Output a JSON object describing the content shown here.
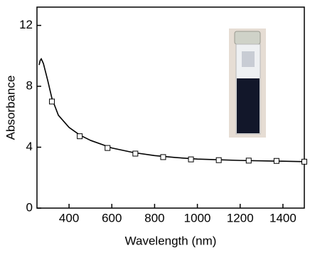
{
  "chart_data": {
    "type": "line",
    "xlabel": "Wavelength (nm)",
    "ylabel": "Absorbance",
    "xlim": [
      250,
      1500
    ],
    "ylim": [
      0,
      13.2
    ],
    "xticks": [
      400,
      600,
      800,
      1000,
      1200,
      1400
    ],
    "yticks": [
      0,
      4,
      8,
      12
    ],
    "series": [
      {
        "style": "line",
        "color": "#000000",
        "x": [
          260,
          265,
          270,
          280,
          300,
          320,
          350,
          400,
          450,
          500,
          600,
          700,
          800,
          900,
          1000,
          1200,
          1400,
          1500
        ],
        "values": [
          9.4,
          9.7,
          9.8,
          9.5,
          8.4,
          7.2,
          6.1,
          5.3,
          4.8,
          4.45,
          3.95,
          3.65,
          3.45,
          3.32,
          3.22,
          3.13,
          3.08,
          3.05
        ]
      },
      {
        "style": "markers",
        "marker": "square",
        "color": "#000000",
        "x": [
          320,
          450,
          580,
          710,
          840,
          970,
          1100,
          1240,
          1370,
          1500
        ],
        "values": [
          7.0,
          4.72,
          3.95,
          3.58,
          3.35,
          3.2,
          3.15,
          3.12,
          3.1,
          3.05
        ]
      }
    ]
  }
}
